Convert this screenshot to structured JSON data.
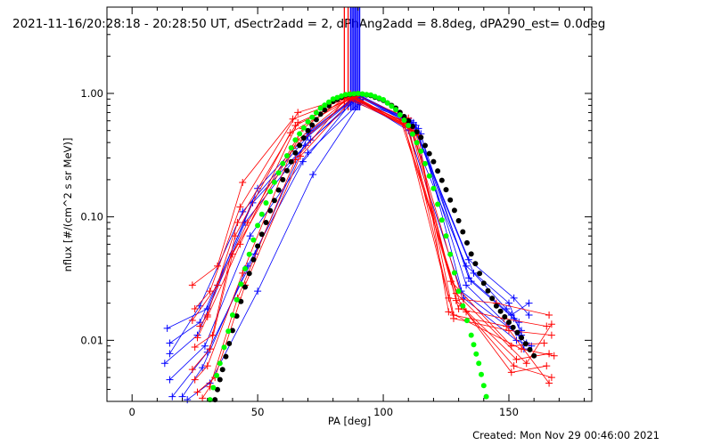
{
  "colors": {
    "red": "#ff0000",
    "blue": "#0000ff",
    "black": "#000000",
    "green": "#00ff00",
    "background": "#ffffff"
  },
  "title": "2021-11-16/20:28:18 - 20:28:50 UT, dSectr2add = 2, dPhAng2add = 8.8deg, dPA290_est=  0.0deg",
  "footer": "Created: Mon Nov 29 00:46:00 2021",
  "chart_data": {
    "type": "line",
    "xlabel": "PA [deg]",
    "ylabel": "nflux [#/(cm^2 s sr MeV)]",
    "xlim": [
      -10,
      183
    ],
    "ylim": [
      0.0032,
      5.0
    ],
    "yscale": "log",
    "grid": false,
    "xticks": [
      {
        "value": 0,
        "label": "0"
      },
      {
        "value": 50,
        "label": "50"
      },
      {
        "value": 100,
        "label": "100"
      },
      {
        "value": 150,
        "label": "150"
      }
    ],
    "yticks": [
      {
        "value": 1.0,
        "label": "1.00"
      },
      {
        "value": 0.1,
        "label": "0.10"
      },
      {
        "value": 0.01,
        "label": "0.01"
      }
    ],
    "vertical_lines": [
      {
        "x": 84.5,
        "color": "red"
      },
      {
        "x": 86.0,
        "color": "red"
      },
      {
        "x": 87.0,
        "color": "blue"
      },
      {
        "x": 87.6,
        "color": "blue"
      },
      {
        "x": 88.2,
        "color": "blue"
      },
      {
        "x": 88.8,
        "color": "blue"
      },
      {
        "x": 89.4,
        "color": "blue"
      },
      {
        "x": 90.0,
        "color": "blue"
      },
      {
        "x": 90.6,
        "color": "blue"
      }
    ],
    "series": [
      {
        "color": "blue",
        "marker": "plus",
        "x": [
          14,
          30,
          50,
          70,
          90,
          112,
          135,
          152,
          155
        ],
        "y": [
          0.0125,
          0.018,
          0.17,
          0.47,
          0.97,
          0.58,
          0.03,
          0.015,
          0.012
        ]
      },
      {
        "color": "blue",
        "marker": "plus",
        "x": [
          15,
          27,
          48,
          71,
          91,
          113,
          133,
          150,
          157
        ],
        "y": [
          0.0095,
          0.014,
          0.13,
          0.42,
          0.95,
          0.55,
          0.028,
          0.013,
          0.0095
        ]
      },
      {
        "color": "blue",
        "marker": "plus",
        "x": [
          13,
          26,
          45,
          69,
          89,
          110,
          131,
          154,
          156
        ],
        "y": [
          0.0065,
          0.011,
          0.09,
          0.38,
          0.92,
          0.5,
          0.025,
          0.011,
          0.0085
        ]
      },
      {
        "color": "blue",
        "marker": "plus",
        "x": [
          15,
          29,
          47,
          70,
          92,
          114,
          134,
          151,
          158
        ],
        "y": [
          0.0048,
          0.009,
          0.07,
          0.33,
          0.9,
          0.52,
          0.032,
          0.016,
          0.02
        ]
      },
      {
        "color": "blue",
        "marker": "plus",
        "x": [
          16,
          30,
          49,
          71,
          90,
          111,
          136,
          149,
          154
        ],
        "y": [
          0.0035,
          0.008,
          0.05,
          0.5,
          0.98,
          0.6,
          0.035,
          0.018,
          0.014
        ]
      },
      {
        "color": "blue",
        "marker": "plus",
        "x": [
          20,
          28,
          46,
          68,
          88,
          115,
          132,
          153,
          159
        ],
        "y": [
          0.0035,
          0.006,
          0.04,
          0.28,
          0.88,
          0.47,
          0.022,
          0.01,
          0.009
        ]
      },
      {
        "color": "blue",
        "marker": "plus",
        "x": [
          22,
          31,
          50,
          72,
          91,
          109,
          133,
          150,
          155
        ],
        "y": [
          0.0033,
          0.0045,
          0.025,
          0.22,
          0.85,
          0.62,
          0.04,
          0.02,
          0.011
        ]
      },
      {
        "color": "blue",
        "marker": "plus",
        "x": [
          15,
          27,
          44,
          70,
          90,
          112,
          134,
          152,
          158
        ],
        "y": [
          0.0078,
          0.019,
          0.11,
          0.45,
          0.96,
          0.56,
          0.045,
          0.022,
          0.016
        ]
      },
      {
        "color": "red",
        "marker": "plus",
        "x": [
          24,
          34,
          44,
          64,
          86,
          108,
          126,
          145,
          166
        ],
        "y": [
          0.028,
          0.04,
          0.19,
          0.62,
          0.92,
          0.6,
          0.022,
          0.02,
          0.016
        ]
      },
      {
        "color": "red",
        "marker": "plus",
        "x": [
          25,
          31,
          43,
          66,
          87,
          109,
          130,
          148,
          165
        ],
        "y": [
          0.018,
          0.025,
          0.12,
          0.7,
          0.95,
          0.58,
          0.018,
          0.015,
          0.013
        ]
      },
      {
        "color": "red",
        "marker": "plus",
        "x": [
          27,
          30,
          42,
          65,
          86,
          110,
          128,
          150,
          167
        ],
        "y": [
          0.013,
          0.016,
          0.09,
          0.55,
          0.9,
          0.55,
          0.015,
          0.012,
          0.011
        ]
      },
      {
        "color": "red",
        "marker": "plus",
        "x": [
          25,
          32,
          41,
          63,
          88,
          111,
          127,
          151,
          164
        ],
        "y": [
          0.0088,
          0.011,
          0.07,
          0.48,
          0.93,
          0.52,
          0.03,
          0.009,
          0.0095
        ]
      },
      {
        "color": "red",
        "marker": "plus",
        "x": [
          24,
          31,
          40,
          66,
          87,
          107,
          131,
          153,
          166
        ],
        "y": [
          0.0058,
          0.0085,
          0.05,
          0.42,
          0.94,
          0.6,
          0.019,
          0.007,
          0.0078
        ]
      },
      {
        "color": "red",
        "marker": "plus",
        "x": [
          25,
          30,
          44,
          64,
          89,
          110,
          133,
          151,
          165
        ],
        "y": [
          0.0048,
          0.0062,
          0.035,
          0.36,
          0.97,
          0.63,
          0.017,
          0.0055,
          0.0062
        ]
      },
      {
        "color": "red",
        "marker": "plus",
        "x": [
          26,
          33,
          45,
          67,
          88,
          112,
          129,
          152,
          167
        ],
        "y": [
          0.0038,
          0.005,
          0.028,
          0.31,
          0.91,
          0.5,
          0.021,
          0.0062,
          0.005
        ]
      },
      {
        "color": "red",
        "marker": "plus",
        "x": [
          28,
          31,
          42,
          65,
          86,
          113,
          128,
          149,
          166
        ],
        "y": [
          0.0034,
          0.0042,
          0.022,
          0.29,
          0.96,
          0.48,
          0.016,
          0.013,
          0.0045
        ]
      },
      {
        "color": "red",
        "marker": "plus",
        "x": [
          24,
          34,
          46,
          68,
          87,
          114,
          126,
          155,
          168
        ],
        "y": [
          0.0145,
          0.028,
          0.09,
          0.52,
          0.99,
          0.46,
          0.017,
          0.0085,
          0.0075
        ]
      },
      {
        "color": "red",
        "marker": "plus",
        "x": [
          26,
          30,
          43,
          66,
          89,
          108,
          129,
          157,
          167
        ],
        "y": [
          0.0105,
          0.0155,
          0.06,
          0.58,
          0.94,
          0.57,
          0.024,
          0.0065,
          0.0135
        ]
      }
    ],
    "fits": [
      {
        "color": "black",
        "x": [
          33,
          36,
          40,
          45,
          50,
          55,
          60,
          65,
          70,
          75,
          80,
          85,
          90,
          95,
          100,
          105,
          110,
          115,
          120,
          125,
          130,
          135,
          140,
          145,
          150,
          155,
          160
        ],
        "y": [
          0.0033,
          0.0058,
          0.012,
          0.027,
          0.058,
          0.112,
          0.2,
          0.33,
          0.5,
          0.68,
          0.86,
          0.97,
          1.0,
          0.96,
          0.88,
          0.76,
          0.6,
          0.44,
          0.28,
          0.166,
          0.093,
          0.05,
          0.029,
          0.019,
          0.014,
          0.0105,
          0.0075
        ]
      },
      {
        "color": "green",
        "x": [
          31,
          35,
          40,
          45,
          50,
          55,
          60,
          65,
          70,
          75,
          80,
          85,
          90,
          95,
          100,
          105,
          110,
          115,
          120,
          125,
          130,
          135,
          138,
          141
        ],
        "y": [
          0.0033,
          0.0065,
          0.016,
          0.038,
          0.085,
          0.16,
          0.27,
          0.42,
          0.59,
          0.76,
          0.9,
          0.98,
          1.0,
          0.97,
          0.89,
          0.74,
          0.55,
          0.34,
          0.17,
          0.07,
          0.025,
          0.011,
          0.0065,
          0.0035
        ]
      }
    ]
  }
}
